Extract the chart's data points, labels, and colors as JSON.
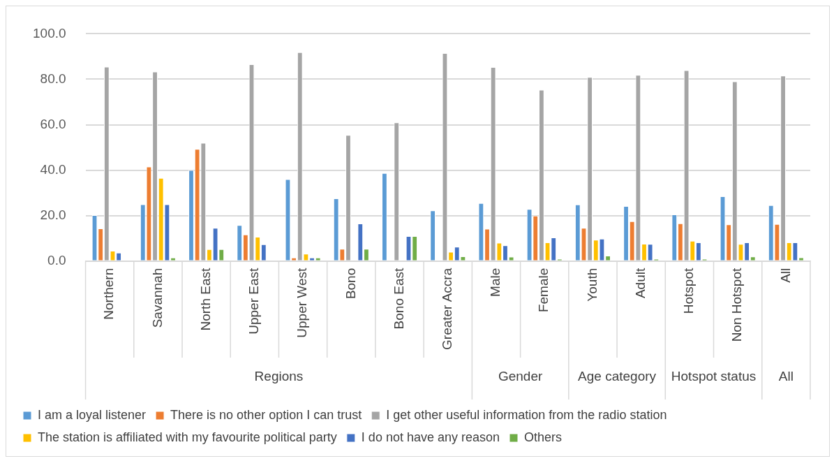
{
  "chart_data": {
    "type": "bar",
    "categories": [
      "Northern",
      "Savannah",
      "North East",
      "Upper East",
      "Upper West",
      "Bono",
      "Bono East",
      "Greater Accra",
      "Male",
      "Female",
      "Youth",
      "Adult",
      "Hotspot",
      "Non Hotspot",
      "All"
    ],
    "series": [
      {
        "name": "I am a loyal listener",
        "color": "#5b9bd5",
        "values": [
          20.2,
          25.0,
          40.0,
          15.8,
          36.0,
          27.6,
          38.7,
          22.3,
          25.5,
          22.9,
          24.9,
          24.2,
          20.5,
          28.5,
          24.6
        ]
      },
      {
        "name": "There is no other option I can trust",
        "color": "#ed7d31",
        "values": [
          14.4,
          41.6,
          49.3,
          11.7,
          1.5,
          5.4,
          0,
          0,
          14.2,
          20.0,
          14.6,
          17.5,
          16.6,
          16.1,
          16.3
        ]
      },
      {
        "name": "I get other useful information from the radio station",
        "color": "#a5a5a5",
        "values": [
          85.5,
          83.4,
          52.0,
          86.6,
          91.9,
          55.5,
          61.0,
          91.5,
          85.4,
          75.4,
          81.0,
          81.9,
          84.0,
          79.1,
          81.6
        ]
      },
      {
        "name": "The station is affiliated with my favourite political party",
        "color": "#ffc000",
        "values": [
          4.5,
          36.6,
          5.2,
          10.7,
          3.2,
          0,
          0,
          4.1,
          8.1,
          8.2,
          9.4,
          7.6,
          8.9,
          7.5,
          8.2
        ]
      },
      {
        "name": "I do not have any reason",
        "color": "#4472c4",
        "values": [
          3.7,
          25.0,
          14.6,
          7.4,
          1.5,
          16.5,
          11.0,
          6.3,
          6.9,
          10.4,
          9.8,
          7.5,
          8.2,
          8.2,
          8.2
        ]
      },
      {
        "name": "Others",
        "color": "#70ad47",
        "values": [
          0,
          1.5,
          5.2,
          0,
          1.5,
          5.4,
          11.0,
          2.1,
          1.9,
          1.0,
          2.4,
          1.0,
          1.0,
          2.0,
          1.6
        ]
      }
    ],
    "annotations": [
      "Regions",
      "Gender",
      "Age category",
      "Hotspot status",
      "All"
    ],
    "ylim": [
      0,
      100
    ],
    "yticks": [
      {
        "value": 0,
        "label": "0.0"
      },
      {
        "value": 20,
        "label": "20.0"
      },
      {
        "value": 40,
        "label": "40.0"
      },
      {
        "value": 60,
        "label": "60.0"
      },
      {
        "value": 80,
        "label": "80.0"
      },
      {
        "value": 100,
        "label": "100.0"
      }
    ],
    "grid": "y",
    "legend": "bottom"
  }
}
